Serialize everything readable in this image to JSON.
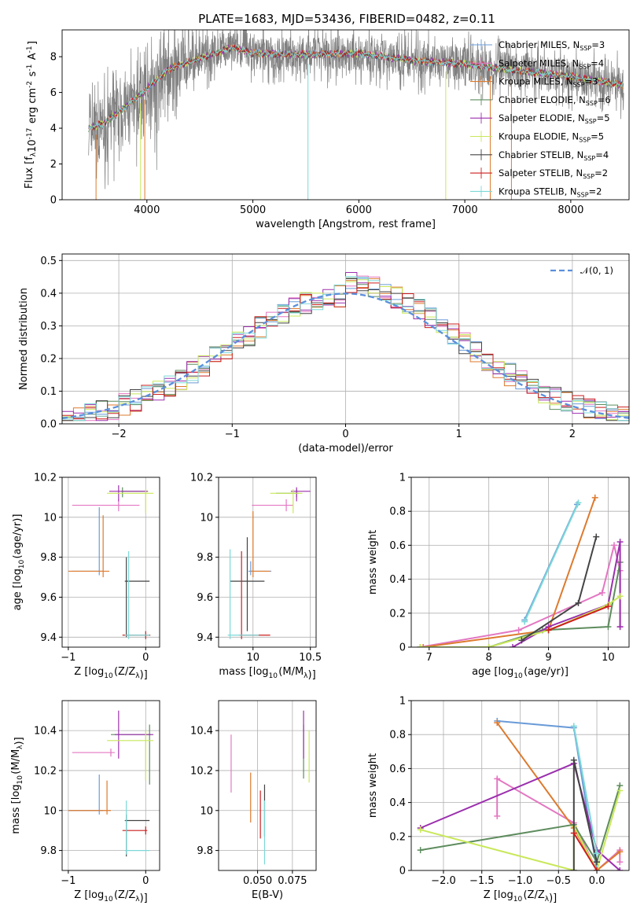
{
  "figure": {
    "title": "PLATE=1683, MJD=53436, FIBERID=0482, z=0.11"
  },
  "models": [
    {
      "name": "Chabrier MILES, N$_{SSP}$=3",
      "imf": "Chabrier",
      "lib": "MILES",
      "nssp": 3,
      "color": "#6a9bd8"
    },
    {
      "name": "Salpeter MILES, N$_{SSP}$=4",
      "imf": "Salpeter",
      "lib": "MILES",
      "nssp": 4,
      "color": "#e377c2"
    },
    {
      "name": "Kroupa MILES, N$_{SSP}$=3",
      "imf": "Kroupa",
      "lib": "MILES",
      "nssp": 3,
      "color": "#dd7a2e"
    },
    {
      "name": "Chabrier ELODIE, N$_{SSP}$=6",
      "imf": "Chabrier",
      "lib": "ELODIE",
      "nssp": 6,
      "color": "#5e8c5e"
    },
    {
      "name": "Salpeter ELODIE, N$_{SSP}$=5",
      "imf": "Salpeter",
      "lib": "ELODIE",
      "nssp": 5,
      "color": "#9b2fae"
    },
    {
      "name": "Kroupa ELODIE, N$_{SSP}$=5",
      "imf": "Kroupa",
      "lib": "ELODIE",
      "nssp": 5,
      "color": "#c9e85a"
    },
    {
      "name": "Chabrier STELIB, N$_{SSP}$=4",
      "imf": "Chabrier",
      "lib": "STELIB",
      "nssp": 4,
      "color": "#444444"
    },
    {
      "name": "Salpeter STELIB, N$_{SSP}$=2",
      "imf": "Salpeter",
      "lib": "STELIB",
      "nssp": 2,
      "color": "#cc1f1f"
    },
    {
      "name": "Kroupa STELIB, N$_{SSP}$=2",
      "imf": "Kroupa",
      "lib": "STELIB",
      "nssp": 2,
      "color": "#7dd8d8"
    }
  ],
  "legend_text": [
    "Chabrier MILES, N",
    "Salpeter MILES, N",
    "Kroupa MILES, N",
    "Chabrier ELODIE, N",
    "Salpeter ELODIE, N",
    "Kroupa ELODIE, N",
    "Chabrier STELIB, N",
    "Salpeter STELIB, N",
    "Kroupa STELIB, N"
  ],
  "legend_sub": "SSP",
  "legend_nssp": [
    "=3",
    "=4",
    "=3",
    "=6",
    "=5",
    "=5",
    "=4",
    "=2",
    "=2"
  ],
  "chart_data": [
    {
      "id": "spectrum",
      "type": "line",
      "xlabel": "wavelength [Angstrom, rest frame]",
      "ylabel": "Flux [f$_\\lambda$10$^{-17}$ erg cm$^{-2}$ s$^{-1}$ A$^{-1}$]",
      "xlim": [
        3200,
        8550
      ],
      "ylim": [
        0,
        9.5
      ],
      "xticks": [
        4000,
        5000,
        6000,
        7000,
        8000
      ],
      "yticks": [
        0,
        2,
        4,
        6,
        8
      ],
      "data_envelope": {
        "x": [
          3450,
          3600,
          3800,
          4000,
          4200,
          4500,
          4800,
          5000,
          5500,
          6000,
          6500,
          7000,
          7500,
          8000,
          8500
        ],
        "y": [
          4.0,
          4.3,
          5.2,
          6.2,
          7.3,
          7.9,
          8.5,
          8.2,
          8.1,
          8.2,
          7.8,
          7.6,
          7.2,
          6.9,
          6.4
        ]
      },
      "dropouts": [
        3520,
        3940,
        3980,
        5520,
        6820,
        7240,
        7440
      ]
    },
    {
      "id": "residuals",
      "type": "histogram",
      "xlabel": "(data-model)/error",
      "ylabel": "Normed distribution",
      "xlim": [
        -2.5,
        2.5
      ],
      "ylim": [
        0,
        0.52
      ],
      "xticks": [
        -2,
        -1,
        0,
        1,
        2
      ],
      "xtick_labels": [
        "−2",
        "−1",
        "0",
        "1",
        "2"
      ],
      "yticks": [
        0.0,
        0.1,
        0.2,
        0.3,
        0.4,
        0.5
      ],
      "ytick_labels": [
        "0.0",
        "0.1",
        "0.2",
        "0.3",
        "0.4",
        "0.5"
      ],
      "bin_width": 0.1,
      "reference": {
        "name": "N(0,1)",
        "mean": 0,
        "sigma": 1
      }
    },
    {
      "id": "age_vs_Z",
      "type": "errorbar",
      "xlabel": "Z [log$_{10}$(Z/Z$_\\odot$)]",
      "ylabel": "age  [log$_{10}$(age/yr)]",
      "xlim": [
        -1.08,
        0.18
      ],
      "ylim": [
        9.35,
        10.2
      ],
      "xticks": [
        -1,
        0
      ],
      "yticks": [
        9.4,
        9.6,
        9.8,
        10.0,
        10.2
      ],
      "points": [
        {
          "m": 0,
          "x": -0.6,
          "xerr": [
            0.35,
            0.05
          ],
          "y": 9.73,
          "yerr": [
            0.02,
            0.32
          ]
        },
        {
          "m": 1,
          "x": -0.35,
          "xerr": [
            0.6,
            0.27
          ],
          "y": 10.06,
          "yerr": [
            0.03,
            0.03
          ]
        },
        {
          "m": 2,
          "x": -0.55,
          "xerr": [
            0.45,
            0.08
          ],
          "y": 9.73,
          "yerr": [
            0.03,
            0.28
          ]
        },
        {
          "m": 3,
          "x": -0.3,
          "xerr": [
            0.02,
            0.32
          ],
          "y": 10.13,
          "yerr": [
            0.03,
            0.02
          ]
        },
        {
          "m": 4,
          "x": -0.35,
          "xerr": [
            0.12,
            0.38
          ],
          "y": 10.13,
          "yerr": [
            0.05,
            0.03
          ]
        },
        {
          "m": 5,
          "x": 0.0,
          "xerr": [
            0.5,
            0.1
          ],
          "y": 10.12,
          "yerr": [
            0.1,
            0.02
          ]
        },
        {
          "m": 6,
          "x": -0.25,
          "xerr": [
            0.02,
            0.3
          ],
          "y": 9.68,
          "yerr": [
            0.28,
            0.12
          ]
        },
        {
          "m": 7,
          "x": 0.0,
          "xerr": [
            0.3,
            0.06
          ],
          "y": 9.41,
          "yerr": [
            0.02,
            0.02
          ]
        },
        {
          "m": 8,
          "x": -0.22,
          "xerr": [
            0.05,
            0.27
          ],
          "y": 9.41,
          "yerr": [
            0.02,
            0.42
          ]
        }
      ]
    },
    {
      "id": "age_vs_mass",
      "type": "errorbar",
      "xlabel": "mass [log$_{10}$(M/M$_\\odot$)]",
      "ylabel": "",
      "xlim": [
        9.7,
        10.55
      ],
      "ylim": [
        9.35,
        10.2
      ],
      "xticks": [
        10.0,
        10.5
      ],
      "yticks": [
        9.4,
        9.6,
        9.8,
        10.0,
        10.2
      ],
      "points": [
        {
          "m": 0,
          "x": 9.98,
          "xerr": [
            0.02,
            0.18
          ],
          "y": 9.73,
          "yerr": [
            0.02,
            0.05
          ]
        },
        {
          "m": 1,
          "x": 10.29,
          "xerr": [
            0.3,
            0.06
          ],
          "y": 10.06,
          "yerr": [
            0.03,
            0.03
          ]
        },
        {
          "m": 2,
          "x": 10.0,
          "xerr": [
            0.02,
            0.15
          ],
          "y": 9.73,
          "yerr": [
            0.03,
            0.3
          ]
        },
        {
          "m": 3,
          "x": 10.38,
          "xerr": [
            0.18,
            0.02
          ],
          "y": 10.12,
          "yerr": [
            0.02,
            0.02
          ]
        },
        {
          "m": 4,
          "x": 10.38,
          "xerr": [
            0.05,
            0.12
          ],
          "y": 10.13,
          "yerr": [
            0.05,
            0.02
          ]
        },
        {
          "m": 5,
          "x": 10.35,
          "xerr": [
            0.2,
            0.08
          ],
          "y": 10.12,
          "yerr": [
            0.1,
            0.02
          ]
        },
        {
          "m": 6,
          "x": 9.95,
          "xerr": [
            0.15,
            0.15
          ],
          "y": 9.68,
          "yerr": [
            0.25,
            0.22
          ]
        },
        {
          "m": 7,
          "x": 9.9,
          "xerr": [
            0.02,
            0.25
          ],
          "y": 9.41,
          "yerr": [
            0.02,
            0.42
          ]
        },
        {
          "m": 8,
          "x": 9.8,
          "xerr": [
            0.02,
            0.25
          ],
          "y": 9.41,
          "yerr": [
            0.02,
            0.43
          ]
        }
      ]
    },
    {
      "id": "massweight_vs_age",
      "type": "line",
      "xlabel": "age  [log$_{10}$(age/yr)]",
      "ylabel": "mass weight",
      "xlim": [
        6.7,
        10.35
      ],
      "ylim": [
        0,
        1.0
      ],
      "xticks": [
        7,
        8,
        9,
        10
      ],
      "yticks": [
        0.0,
        0.2,
        0.4,
        0.6,
        0.8,
        1.0
      ],
      "series": [
        {
          "m": 0,
          "x": [
            8.6,
            9.48
          ],
          "y": [
            0.16,
            0.84
          ]
        },
        {
          "m": 1,
          "x": [
            6.85,
            8.5,
            9.9,
            10.1,
            10.2,
            10.2
          ],
          "y": [
            0.0,
            0.1,
            0.32,
            0.6,
            0.45,
            0.12
          ]
        },
        {
          "m": 2,
          "x": [
            6.9,
            9.0,
            9.78
          ],
          "y": [
            0.0,
            0.1,
            0.88
          ]
        },
        {
          "m": 3,
          "x": [
            6.85,
            8.0,
            8.9,
            10.0,
            10.2
          ],
          "y": [
            0.0,
            0.0,
            0.1,
            0.12,
            0.5
          ]
        },
        {
          "m": 4,
          "x": [
            8.4,
            9.0,
            10.0,
            10.2,
            10.2
          ],
          "y": [
            0.0,
            0.12,
            0.25,
            0.62,
            0.12
          ]
        },
        {
          "m": 5,
          "x": [
            6.85,
            8.0,
            9.0,
            10.0,
            10.2
          ],
          "y": [
            0.0,
            0.0,
            0.1,
            0.25,
            0.3
          ]
        },
        {
          "m": 6,
          "x": [
            8.55,
            9.5,
            9.8
          ],
          "y": [
            0.04,
            0.26,
            0.65
          ]
        },
        {
          "m": 7,
          "x": [
            9.0,
            10.0
          ],
          "y": [
            0.1,
            0.24
          ]
        },
        {
          "m": 8,
          "x": [
            8.6,
            9.5
          ],
          "y": [
            0.15,
            0.85
          ]
        }
      ]
    },
    {
      "id": "mass_vs_Z",
      "type": "errorbar",
      "xlabel": "Z [log$_{10}$(Z/Z$_\\odot$)]",
      "ylabel": "mass [log$_{10}$(M/M$_\\odot$)]",
      "xlim": [
        -1.08,
        0.18
      ],
      "ylim": [
        9.7,
        10.55
      ],
      "xticks": [
        -1,
        0
      ],
      "yticks": [
        9.8,
        10.0,
        10.2,
        10.4
      ],
      "points": [
        {
          "m": 0,
          "x": -0.6,
          "xerr": [
            0.4,
            0.05
          ],
          "y": 10.0,
          "yerr": [
            0.02,
            0.18
          ]
        },
        {
          "m": 1,
          "x": -0.45,
          "xerr": [
            0.5,
            0.05
          ],
          "y": 10.29,
          "yerr": [
            0.02,
            0.02
          ]
        },
        {
          "m": 2,
          "x": -0.5,
          "xerr": [
            0.5,
            0.05
          ],
          "y": 10.0,
          "yerr": [
            0.02,
            0.15
          ]
        },
        {
          "m": 3,
          "x": 0.05,
          "xerr": [
            0.5,
            0.02
          ],
          "y": 10.38,
          "yerr": [
            0.25,
            0.05
          ]
        },
        {
          "m": 4,
          "x": -0.35,
          "xerr": [
            0.05,
            0.45
          ],
          "y": 10.38,
          "yerr": [
            0.12,
            0.12
          ]
        },
        {
          "m": 5,
          "x": 0.0,
          "xerr": [
            0.5,
            0.1
          ],
          "y": 10.35,
          "yerr": [
            0.2,
            0.05
          ]
        },
        {
          "m": 6,
          "x": -0.25,
          "xerr": [
            0.02,
            0.3
          ],
          "y": 9.95,
          "yerr": [
            0.18,
            0.03
          ]
        },
        {
          "m": 7,
          "x": 0.0,
          "xerr": [
            0.3,
            0.02
          ],
          "y": 9.9,
          "yerr": [
            0.02,
            0.02
          ]
        },
        {
          "m": 8,
          "x": -0.25,
          "xerr": [
            0.02,
            0.3
          ],
          "y": 9.8,
          "yerr": [
            0.02,
            0.25
          ]
        }
      ]
    },
    {
      "id": "mass_vs_ebv",
      "type": "errorbar",
      "xlabel": "E(B-V)",
      "ylabel": "",
      "xlim": [
        0.022,
        0.092
      ],
      "ylim": [
        9.7,
        10.55
      ],
      "xticks": [
        0.05,
        0.075
      ],
      "xtick_labels": [
        "0.050",
        "0.075"
      ],
      "yticks": [
        9.8,
        10.0,
        10.2,
        10.4
      ],
      "points": [
        {
          "m": 1,
          "x": 0.031,
          "y": 10.29,
          "yerr": [
            0.2,
            0.09
          ]
        },
        {
          "m": 2,
          "x": 0.045,
          "y": 10.0,
          "yerr": [
            0.06,
            0.19
          ]
        },
        {
          "m": 7,
          "x": 0.052,
          "y": 9.9,
          "yerr": [
            0.04,
            0.2
          ]
        },
        {
          "m": 6,
          "x": 0.055,
          "y": 9.95,
          "yerr": [
            0.08,
            0.18
          ]
        },
        {
          "m": 8,
          "x": 0.055,
          "y": 9.8,
          "yerr": [
            0.07,
            0.25
          ]
        },
        {
          "m": 3,
          "x": 0.083,
          "y": 10.38,
          "yerr": [
            0.22,
            0.05
          ]
        },
        {
          "m": 4,
          "x": 0.083,
          "y": 10.38,
          "yerr": [
            0.12,
            0.12
          ]
        },
        {
          "m": 5,
          "x": 0.087,
          "y": 10.3,
          "yerr": [
            0.16,
            0.1
          ]
        }
      ]
    },
    {
      "id": "massweight_vs_Z",
      "type": "line",
      "xlabel": "Z [log$_{10}$(Z/Z$_\\odot$)]",
      "ylabel": "mass weight",
      "xlim": [
        -2.42,
        0.42
      ],
      "ylim": [
        0,
        1.0
      ],
      "xticks": [
        -2.0,
        -1.5,
        -1.0,
        -0.5,
        0.0
      ],
      "xtick_labels": [
        "−2.0",
        "−1.5",
        "−1.0",
        "−0.5",
        "0.0"
      ],
      "yticks": [
        0.0,
        0.2,
        0.4,
        0.6,
        0.8,
        1.0
      ],
      "series": [
        {
          "m": 0,
          "x": [
            -1.3,
            -0.3,
            0.0
          ],
          "y": [
            0.88,
            0.84,
            0.0
          ]
        },
        {
          "m": 1,
          "x": [
            -1.3,
            -1.3,
            -0.3,
            0.0,
            0.3,
            0.3
          ],
          "y": [
            0.32,
            0.54,
            0.28,
            0.0,
            0.12,
            0.05
          ]
        },
        {
          "m": 2,
          "x": [
            -1.3,
            -0.3,
            0.0,
            0.3
          ],
          "y": [
            0.87,
            0.25,
            0.0,
            0.11
          ]
        },
        {
          "m": 3,
          "x": [
            -2.3,
            -0.3,
            0.0,
            0.3
          ],
          "y": [
            0.12,
            0.27,
            0.05,
            0.5
          ]
        },
        {
          "m": 4,
          "x": [
            -2.3,
            -0.3,
            0.0,
            0.3
          ],
          "y": [
            0.25,
            0.63,
            0.12,
            0.0
          ]
        },
        {
          "m": 5,
          "x": [
            -2.3,
            -0.3,
            -0.3,
            0.0,
            0.3
          ],
          "y": [
            0.24,
            0.0,
            0.26,
            0.0,
            0.47
          ]
        },
        {
          "m": 6,
          "x": [
            -0.3,
            -0.3,
            0.0
          ],
          "y": [
            0.0,
            0.65,
            0.05
          ]
        },
        {
          "m": 7,
          "x": [
            -0.3,
            0.0
          ],
          "y": [
            0.22,
            0.0
          ]
        },
        {
          "m": 8,
          "x": [
            -0.3,
            0.0
          ],
          "y": [
            0.85,
            0.1
          ]
        }
      ]
    }
  ]
}
